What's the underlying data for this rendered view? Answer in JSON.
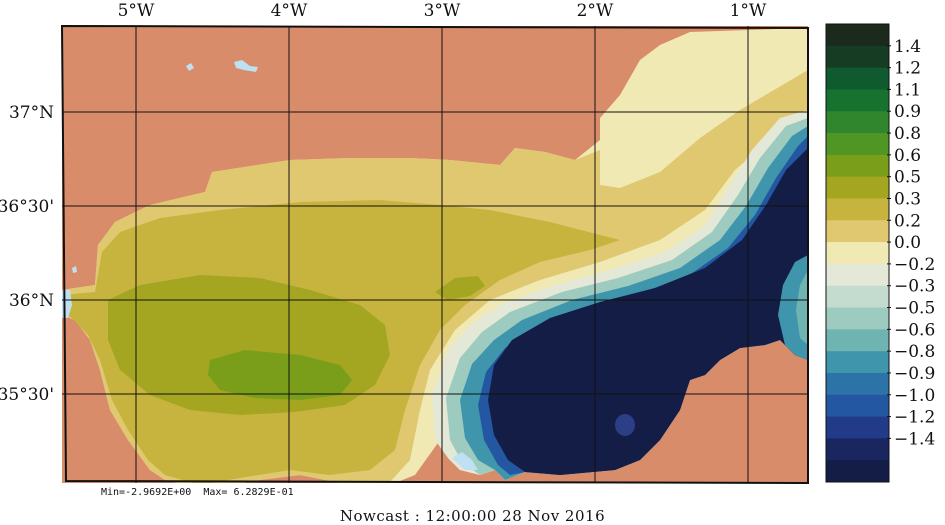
{
  "map": {
    "lon_labels": [
      "5°W",
      "4°W",
      "3°W",
      "2°W",
      "1°W"
    ],
    "lat_labels": [
      "37°N",
      "36°30'",
      "36°N",
      "35°30'"
    ],
    "lon_ticks": [
      -5,
      -4,
      -3,
      -2,
      -1
    ],
    "lat_ticks": [
      37.0,
      36.5,
      36.0,
      35.5
    ],
    "extent": {
      "lon_min": -5.45,
      "lon_max": -0.6,
      "lat_min": 35.05,
      "lat_max": 37.45
    },
    "land_color": "#d98c6a",
    "water_color": "#bfe0f2",
    "grid_color": "#111111"
  },
  "colorbar": {
    "labels": [
      "1.4",
      "1.2",
      "1.1",
      "0.9",
      "0.8",
      "0.6",
      "0.5",
      "0.3",
      "0.2",
      "0.0",
      "−0.2",
      "−0.3",
      "−0.5",
      "−0.6",
      "−0.8",
      "−0.9",
      "−1.0",
      "−1.2",
      "−1.4"
    ],
    "colors": [
      "#1b2a1c",
      "#163c24",
      "#0f5a2e",
      "#16722e",
      "#2f862c",
      "#4f9624",
      "#7a9e1a",
      "#a4a622",
      "#c7b43e",
      "#dfc870",
      "#f1e9b4",
      "#e4e8d6",
      "#c4dccf",
      "#9ecbbf",
      "#6fb4b1",
      "#3f96ac",
      "#2c74a7",
      "#2357a2",
      "#213b88",
      "#1a2660",
      "#141d45"
    ]
  },
  "stats": {
    "text": "Min=-2.9692E+00  Max= 6.2829E-01"
  },
  "caption": {
    "text": "Nowcast : 12:00:00  28 Nov 2016"
  }
}
